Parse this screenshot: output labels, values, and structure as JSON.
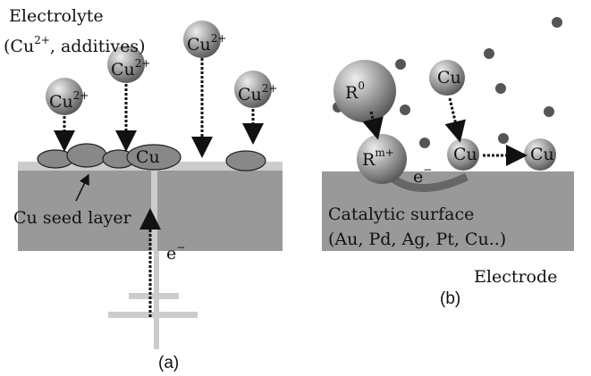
{
  "panel_a": {
    "electrolyte": "Electrolyte",
    "electrolyte_detail": {
      "open": "(Cu",
      "sup": "2+",
      "rest": ", additives)"
    },
    "ions": [
      {
        "base": "Cu",
        "sup": "2+"
      },
      {
        "base": "Cu",
        "sup": "2+"
      },
      {
        "base": "Cu",
        "sup": "2+"
      },
      {
        "base": "Cu",
        "sup": "2+"
      }
    ],
    "deposit": "Cu",
    "seed_layer": "Cu seed layer",
    "electron": {
      "base": "e",
      "sup": "−"
    },
    "caption": "(a)"
  },
  "panel_b": {
    "r0": {
      "base": "R",
      "sup": "0"
    },
    "rm": {
      "base": "R",
      "sup": "m+"
    },
    "cu_balls": [
      "Cu",
      "Cu",
      "Cu"
    ],
    "electron": {
      "base": "e",
      "sup": "−"
    },
    "surface": "Catalytic surface",
    "metals": "(Au, Pd, Ag, Pt, Cu..)",
    "electrode": "Electrode",
    "caption": "(b)"
  }
}
